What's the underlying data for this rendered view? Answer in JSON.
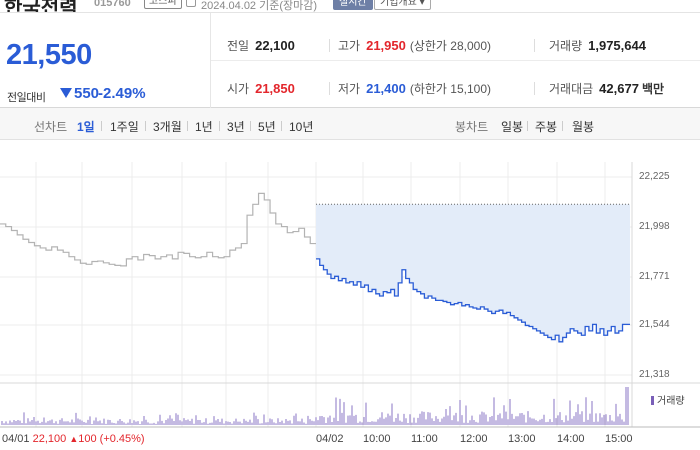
{
  "header": {
    "stock_name": "한국전력",
    "stock_code": "015760",
    "market_badge": "코스피",
    "as_of": "2024.04.02  기준(장마감)",
    "live_button": "실시간",
    "overview_button": "기업개요"
  },
  "quote": {
    "price": "21,550",
    "change_label": "전일대비",
    "change_value": "550",
    "change_pct": "-2.49%",
    "direction": "down",
    "color_up": "#e3262c",
    "color_down": "#2a5cd6"
  },
  "stats": {
    "prev_close_label": "전일",
    "prev_close": "22,100",
    "high_label": "고가",
    "high": "21,950",
    "upper_limit": "(상한가 28,000)",
    "volume_label": "거래량",
    "volume": "1,975,644",
    "open_label": "시가",
    "open": "21,850",
    "low_label": "저가",
    "low": "21,400",
    "lower_limit": "(하한가 15,100)",
    "amount_label": "거래대금",
    "amount": "42,677",
    "amount_unit": "백만"
  },
  "tabs": {
    "line_chart_label": "선차트",
    "periods": [
      "1일",
      "1주일",
      "3개월",
      "1년",
      "3년",
      "5년",
      "10년"
    ],
    "active_period": "1일",
    "candle_label": "봉차트",
    "candles": [
      "일봉",
      "주봉",
      "월봉"
    ]
  },
  "chart_data": {
    "type": "line",
    "y_ticks": [
      "22,225",
      "21,998",
      "21,771",
      "21,544",
      "21,318"
    ],
    "ylim": [
      21318,
      22225
    ],
    "x_ticks": [
      "04/01",
      "04/02",
      "10:00",
      "11:00",
      "12:00",
      "13:00",
      "14:00",
      "15:00"
    ],
    "reference_line": 22100,
    "grid": true,
    "volume_legend": "거래량",
    "prev_day_summary": {
      "date": "04/01",
      "close": "22,100",
      "change": "100",
      "change_pct": "(+0.45%)"
    },
    "series": [
      {
        "values": [
          22010,
          21998,
          21980,
          21960,
          21940,
          21925,
          21910,
          21900,
          21890,
          21905,
          21890,
          21880,
          21860,
          21845,
          21830,
          21825,
          21838,
          21840,
          21832,
          21825,
          21820,
          21818,
          21850,
          21860,
          21845,
          21870,
          21865,
          21850,
          21860,
          21868,
          21850,
          21880,
          21875,
          21860,
          21855,
          21860,
          21880,
          21860,
          21855,
          21860,
          21890,
          21900,
          21920,
          22050,
          22100,
          22150,
          22120,
          22060,
          22010,
          21998,
          21970,
          21975,
          21990,
          21950,
          21920
        ],
        "color": "#b3b3b3"
      },
      {
        "values": [
          21850,
          21820,
          21800,
          21780,
          21760,
          21770,
          21750,
          21760,
          21740,
          21745,
          21730,
          21745,
          21720,
          21730,
          21700,
          21710,
          21690,
          21680,
          21700,
          21695,
          21710,
          21680,
          21740,
          21800,
          21760,
          21740,
          21710,
          21700,
          21690,
          21670,
          21680,
          21670,
          21660,
          21660,
          21655,
          21650,
          21640,
          21645,
          21650,
          21635,
          21640,
          21630,
          21625,
          21620,
          21630,
          21620,
          21610,
          21600,
          21610,
          21615,
          21600,
          21605,
          21590,
          21580,
          21570,
          21560,
          21545,
          21540,
          21530,
          21520,
          21510,
          21500,
          21490,
          21480,
          21500,
          21470,
          21490,
          21510,
          21530,
          21520,
          21510,
          21500,
          21540,
          21520,
          21550,
          21510,
          21530,
          21500,
          21520,
          21540,
          21510,
          21520,
          21550,
          21550
        ],
        "color": "#2a5cd6"
      }
    ]
  }
}
